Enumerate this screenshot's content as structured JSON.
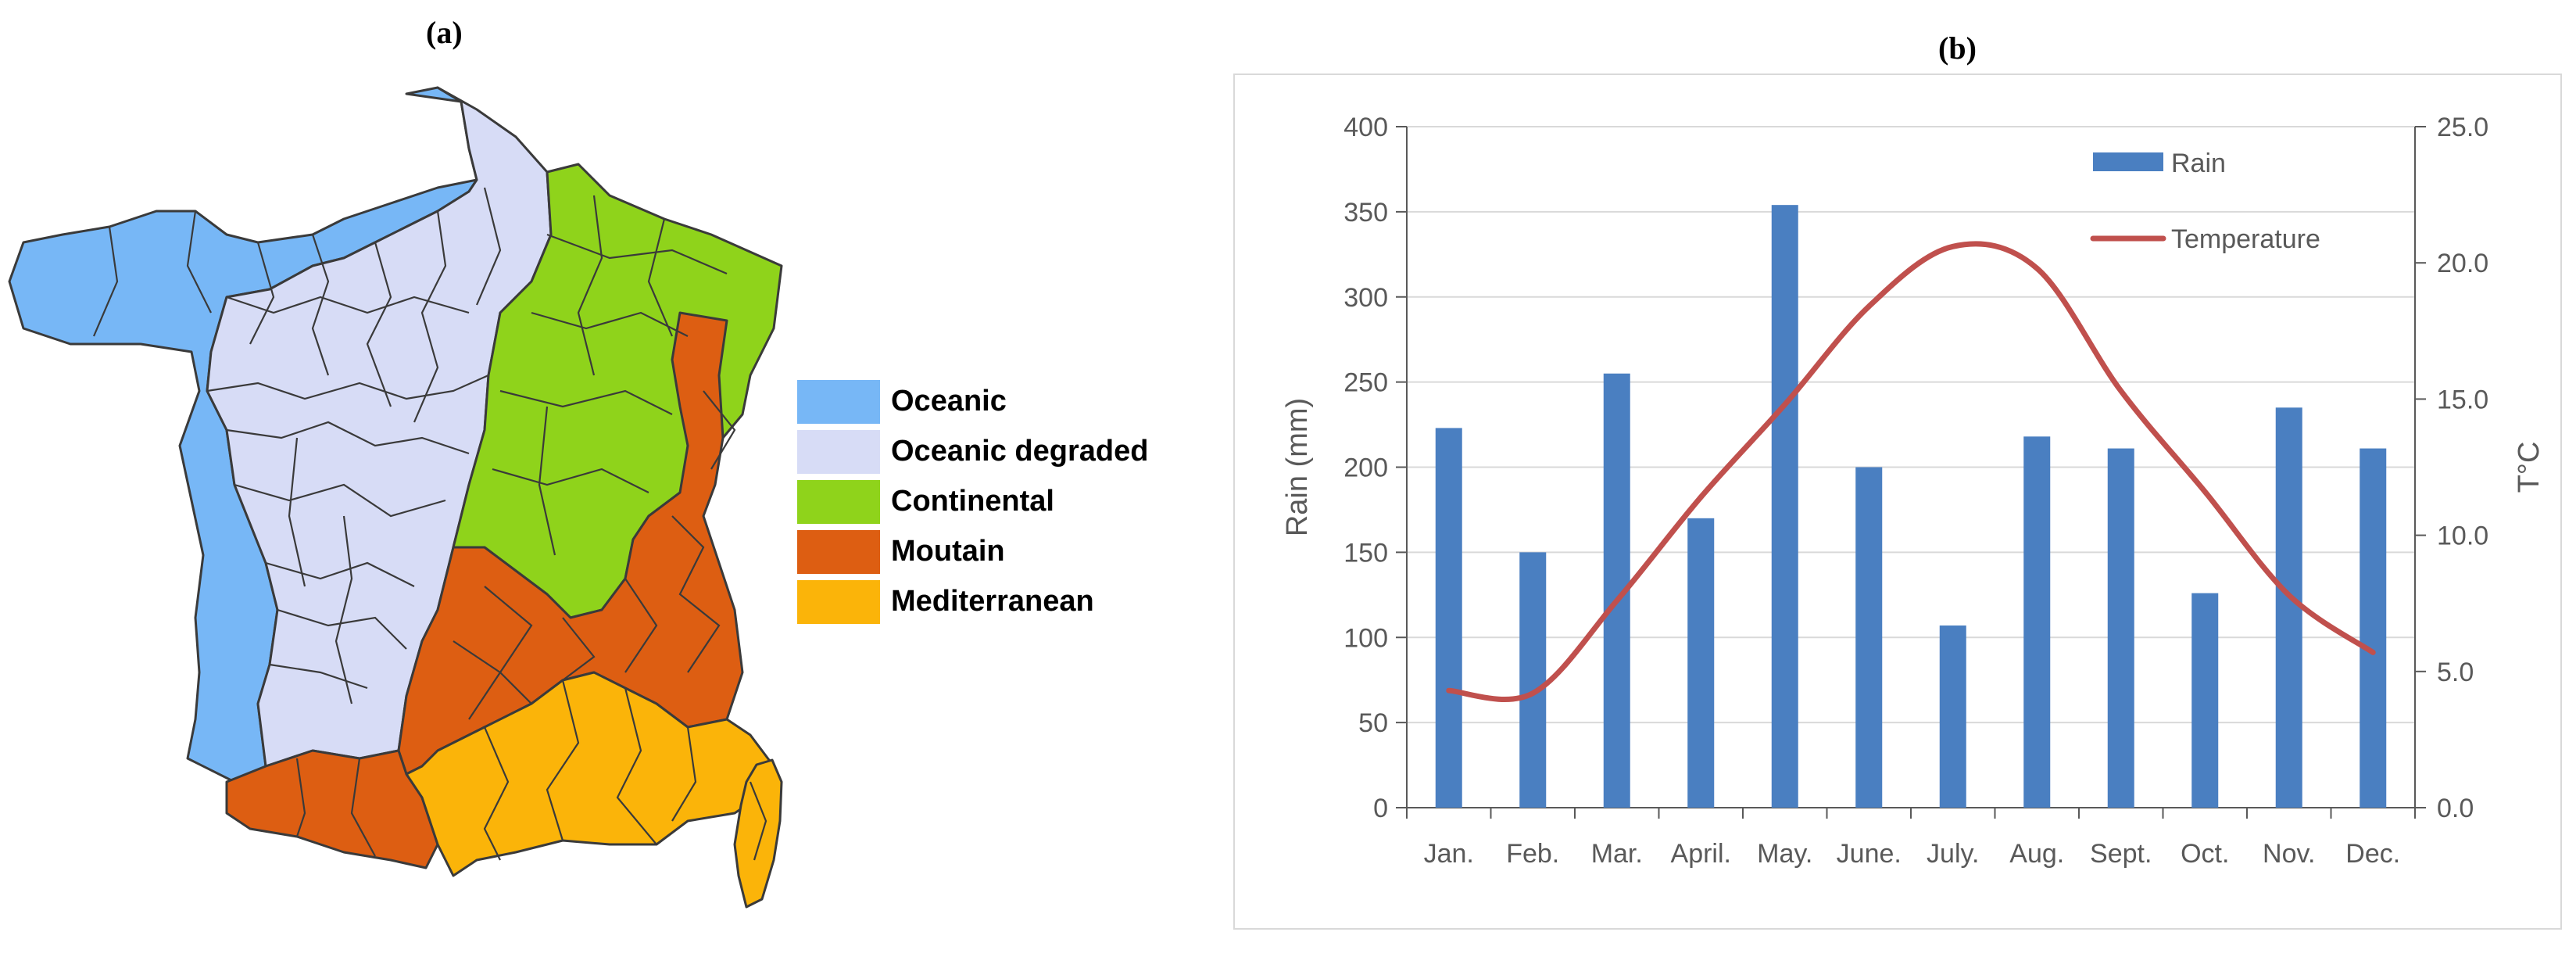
{
  "panels": {
    "a_label": "(a)",
    "b_label": "(b)"
  },
  "map": {
    "legend": [
      {
        "label": "Oceanic",
        "color": "#77b7f6"
      },
      {
        "label": "Oceanic degraded",
        "color": "#d7dcf6"
      },
      {
        "label": "Continental",
        "color": "#8fd31b"
      },
      {
        "label": "Moutain",
        "color": "#dd5e12"
      },
      {
        "label": "Mediterranean",
        "color": "#fbb409"
      }
    ],
    "outline_color": "#3a3a3a"
  },
  "chart_data": {
    "type": "bar",
    "categories": [
      "Jan.",
      "Feb.",
      "Mar.",
      "April.",
      "May.",
      "June.",
      "July.",
      "Aug.",
      "Sept.",
      "Oct.",
      "Nov.",
      "Dec."
    ],
    "series": [
      {
        "name": "Rain",
        "type": "bar",
        "axis": "left",
        "color": "#4a7fc1",
        "values": [
          223,
          150,
          255,
          170,
          354,
          200,
          107,
          218,
          211,
          126,
          235,
          211
        ]
      },
      {
        "name": "Temperature",
        "type": "line",
        "axis": "right",
        "color": "#c0504d",
        "values": [
          4.3,
          4.2,
          7.6,
          11.4,
          14.8,
          18.4,
          20.6,
          19.8,
          15.3,
          11.6,
          7.8,
          5.7
        ]
      }
    ],
    "ylabel": "Rain (mm)",
    "y2label": "T°C",
    "ylim": [
      0,
      400
    ],
    "y2lim": [
      0,
      25
    ],
    "yticks": [
      "0",
      "50",
      "100",
      "150",
      "200",
      "250",
      "300",
      "350",
      "400"
    ],
    "y2ticks": [
      "0.0",
      "5.0",
      "10.0",
      "15.0",
      "20.0",
      "25.0"
    ],
    "grid": true,
    "legend_position": "top-right"
  }
}
